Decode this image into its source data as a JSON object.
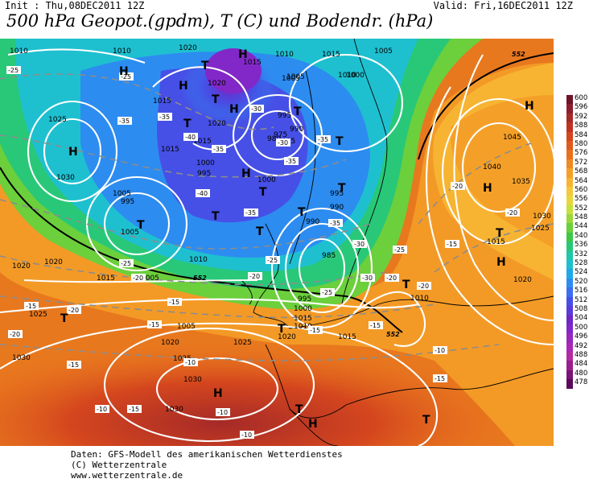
{
  "header": {
    "init": "Init : Thu,08DEC2011 12Z",
    "valid": "Valid: Fri,16DEC2011 12Z",
    "title": "500 hPa Geopot.(gpdm), T (C) und Bodendr. (hPa)"
  },
  "footer": {
    "line1": "Daten: GFS-Modell des amerikanischen Wetterdienstes",
    "line2": "(C) Wetterzentrale",
    "line3": "www.wetterzentrale.de"
  },
  "colors": {
    "sea_bg": "#e8781e",
    "contour": "#ffffff",
    "isotherm": "#8c8c8c",
    "coast": "#000000"
  },
  "scale": [
    {
      "value": "600",
      "color": "#6e1428"
    },
    {
      "value": "596",
      "color": "#8c1e2d"
    },
    {
      "value": "592",
      "color": "#a62a28"
    },
    {
      "value": "588",
      "color": "#bf3324"
    },
    {
      "value": "584",
      "color": "#d4461e"
    },
    {
      "value": "580",
      "color": "#e05a1c"
    },
    {
      "value": "576",
      "color": "#e8701e"
    },
    {
      "value": "572",
      "color": "#ef8a22"
    },
    {
      "value": "568",
      "color": "#f4a028"
    },
    {
      "value": "564",
      "color": "#f7b432"
    },
    {
      "value": "560",
      "color": "#f5c83c"
    },
    {
      "value": "556",
      "color": "#e6d83c"
    },
    {
      "value": "552",
      "color": "#c8e03c"
    },
    {
      "value": "548",
      "color": "#9ad83c"
    },
    {
      "value": "544",
      "color": "#6ccf3c"
    },
    {
      "value": "540",
      "color": "#3cc846"
    },
    {
      "value": "536",
      "color": "#28c878"
    },
    {
      "value": "532",
      "color": "#1ec8a8"
    },
    {
      "value": "528",
      "color": "#1ec0d0"
    },
    {
      "value": "524",
      "color": "#1eaae6"
    },
    {
      "value": "520",
      "color": "#2d8cf0"
    },
    {
      "value": "516",
      "color": "#3c6ef0"
    },
    {
      "value": "512",
      "color": "#4650e6"
    },
    {
      "value": "508",
      "color": "#5a3cdc"
    },
    {
      "value": "504",
      "color": "#6e28c8"
    },
    {
      "value": "500",
      "color": "#8228c8"
    },
    {
      "value": "496",
      "color": "#9628be"
    },
    {
      "value": "492",
      "color": "#aa28b4"
    },
    {
      "value": "488",
      "color": "#b42aa0"
    },
    {
      "value": "484",
      "color": "#9a1e8c"
    },
    {
      "value": "480",
      "color": "#7a1478"
    },
    {
      "value": "478",
      "color": "#5a0a5a"
    }
  ],
  "pressure_labels": [
    "1010",
    "1010",
    "1020",
    "1015",
    "1010",
    "1015",
    "1005",
    "1005",
    "1015",
    "1020",
    "1025",
    "1030",
    "1015",
    "1020",
    "1010",
    "1015",
    "1005",
    "1000",
    "995",
    "990",
    "985",
    "980",
    "975",
    "995",
    "1000",
    "1005",
    "995",
    "990",
    "1000",
    "995",
    "990",
    "985",
    "1005",
    "1010",
    "1000",
    "995",
    "1015",
    "1010",
    "1005",
    "1020",
    "1025",
    "1030",
    "1030",
    "1025",
    "1020",
    "1015",
    "1040",
    "1045",
    "1035",
    "1030",
    "1025",
    "1020",
    "1015",
    "1010",
    "1020",
    "1020",
    "1025",
    "1030",
    "1015",
    "1005"
  ],
  "temp_labels": [
    "-25",
    "-25",
    "-35",
    "-35",
    "-40",
    "-35",
    "-30",
    "-30",
    "-35",
    "-35",
    "-40",
    "-35",
    "-35",
    "-30",
    "-25",
    "-20",
    "-25",
    "-20",
    "-15",
    "-20",
    "-15",
    "-15",
    "-15",
    "-10",
    "-10",
    "-10",
    "-15",
    "-20",
    "-20",
    "-15",
    "-25",
    "-30",
    "-25",
    "-20",
    "-20",
    "-20",
    "-15",
    "-15",
    "-10",
    "-10",
    "-15"
  ],
  "pressure_systems": [
    {
      "type": "H",
      "label": "H"
    },
    {
      "type": "T",
      "label": "T"
    },
    {
      "type": "H",
      "label": "H"
    },
    {
      "type": "T",
      "label": "T"
    },
    {
      "type": "H",
      "label": "H"
    },
    {
      "type": "T",
      "label": "T"
    },
    {
      "type": "H",
      "label": "H"
    },
    {
      "type": "T",
      "label": "T"
    },
    {
      "type": "T",
      "label": "T"
    },
    {
      "type": "T",
      "label": "T"
    },
    {
      "type": "T",
      "label": "T"
    },
    {
      "type": "T",
      "label": "T"
    },
    {
      "type": "T",
      "label": "T"
    },
    {
      "type": "H",
      "label": "H"
    },
    {
      "type": "T",
      "label": "T"
    },
    {
      "type": "T",
      "label": "T"
    },
    {
      "type": "T",
      "label": "T"
    },
    {
      "type": "H",
      "label": "H"
    },
    {
      "type": "H",
      "label": "H"
    },
    {
      "type": "T",
      "label": "T"
    },
    {
      "type": "H",
      "label": "H"
    },
    {
      "type": "T",
      "label": "T"
    },
    {
      "type": "H",
      "label": "H"
    },
    {
      "type": "H",
      "label": "H"
    },
    {
      "type": "T",
      "label": "T"
    },
    {
      "type": "T",
      "label": "T"
    },
    {
      "type": "T",
      "label": "T"
    },
    {
      "type": "H",
      "label": "H"
    }
  ],
  "map_labels_552": [
    "552",
    "552",
    "552"
  ]
}
